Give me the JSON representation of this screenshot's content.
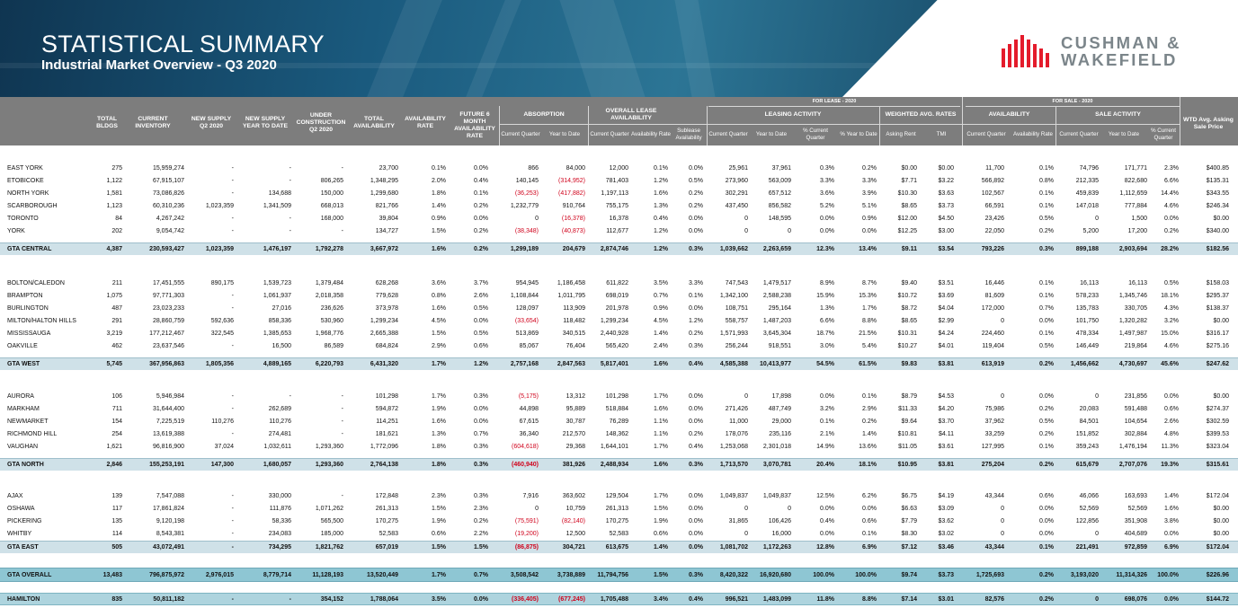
{
  "banner": {
    "title": "STATISTICAL SUMMARY",
    "subtitle": "Industrial Market Overview - Q3 2020",
    "logo_line1": "CUSHMAN &",
    "logo_line2": "WAKEFIELD"
  },
  "headers": {
    "for_lease": "FOR LEASE - 2020",
    "for_sale": "FOR SALE - 2020",
    "total_bldgs": "TOTAL BLDGS",
    "current_inventory": "CURRENT INVENTORY",
    "new_supply_q2": "NEW SUPPLY Q2 2020",
    "new_supply_ytd": "NEW SUPPLY YEAR TO DATE",
    "under_construction": "UNDER CONSTRUCTION Q2 2020",
    "total_availability": "TOTAL AVAILABILITY",
    "availability_rate": "AVAILABILITY RATE",
    "future_6_month": "FUTURE 6 MONTH AVAILABILITY RATE",
    "absorption": "ABSORPTION",
    "overall_lease_availability": "OVERALL LEASE AVAILABILITY",
    "leasing_activity": "LEASING ACTIVITY",
    "weighted_avg_rates": "WEIGHTED AVG. RATES",
    "availability": "AVAILABILITY",
    "sale_activity": "SALE ACTIVITY",
    "wtd_avg_asking_sale_price": "WTD Avg. Asking Sale Price",
    "current_quarter": "Current Quarter",
    "year_to_date": "Year to Date",
    "availability_rate_sub": "Availability Rate",
    "sublease_availability": "Sublease Availability",
    "pct_current_quarter": "% Current Quarter",
    "pct_year_to_date": "% Year to Date",
    "asking_rent": "Asking Rent",
    "tmi": "TMI",
    "pct_current_quarter_2": "% Current Quarter"
  },
  "rows": [
    {
      "type": "data",
      "cells": [
        "EAST YORK",
        "275",
        "15,959,274",
        "-",
        "-",
        "-",
        "23,700",
        "0.1%",
        "0.0%",
        "866",
        "84,000",
        "12,000",
        "0.1%",
        "0.0%",
        "25,961",
        "37,961",
        "0.3%",
        "0.2%",
        "$0.00",
        "$0.00",
        "11,700",
        "0.1%",
        "74,796",
        "171,771",
        "2.3%",
        "$400.85"
      ]
    },
    {
      "type": "data",
      "cells": [
        "ETOBICOKE",
        "1,122",
        "67,915,107",
        "-",
        "-",
        "806,265",
        "1,348,295",
        "2.0%",
        "0.4%",
        "140,145",
        "(314,952)",
        "781,403",
        "1.2%",
        "0.5%",
        "273,960",
        "563,009",
        "3.3%",
        "3.3%",
        "$7.71",
        "$3.22",
        "566,892",
        "0.8%",
        "212,335",
        "822,680",
        "6.6%",
        "$135.31"
      ]
    },
    {
      "type": "data",
      "cells": [
        "NORTH YORK",
        "1,581",
        "73,086,826",
        "-",
        "134,688",
        "150,000",
        "1,299,680",
        "1.8%",
        "0.1%",
        "(36,253)",
        "(417,882)",
        "1,197,113",
        "1.6%",
        "0.2%",
        "302,291",
        "657,512",
        "3.6%",
        "3.9%",
        "$10.30",
        "$3.63",
        "102,567",
        "0.1%",
        "459,839",
        "1,112,659",
        "14.4%",
        "$343.55"
      ]
    },
    {
      "type": "data",
      "cells": [
        "SCARBOROUGH",
        "1,123",
        "60,310,236",
        "1,023,359",
        "1,341,509",
        "668,013",
        "821,766",
        "1.4%",
        "0.2%",
        "1,232,779",
        "910,764",
        "755,175",
        "1.3%",
        "0.2%",
        "437,450",
        "856,582",
        "5.2%",
        "5.1%",
        "$8.65",
        "$3.73",
        "66,591",
        "0.1%",
        "147,018",
        "777,884",
        "4.6%",
        "$246.34"
      ]
    },
    {
      "type": "data",
      "cells": [
        "TORONTO",
        "84",
        "4,267,242",
        "-",
        "-",
        "168,000",
        "39,804",
        "0.9%",
        "0.0%",
        "0",
        "(16,378)",
        "16,378",
        "0.4%",
        "0.0%",
        "0",
        "148,595",
        "0.0%",
        "0.9%",
        "$12.00",
        "$4.50",
        "23,426",
        "0.5%",
        "0",
        "1,500",
        "0.0%",
        "$0.00"
      ]
    },
    {
      "type": "data",
      "cells": [
        "YORK",
        "202",
        "9,054,742",
        "-",
        "-",
        "-",
        "134,727",
        "1.5%",
        "0.2%",
        "(38,348)",
        "(40,873)",
        "112,677",
        "1.2%",
        "0.0%",
        "0",
        "0",
        "0.0%",
        "0.0%",
        "$12.25",
        "$3.00",
        "22,050",
        "0.2%",
        "5,200",
        "17,200",
        "0.2%",
        "$340.00"
      ]
    },
    {
      "type": "total",
      "cells": [
        "GTA CENTRAL",
        "4,387",
        "230,593,427",
        "1,023,359",
        "1,476,197",
        "1,792,278",
        "3,667,972",
        "1.6%",
        "0.2%",
        "1,299,189",
        "204,679",
        "2,874,746",
        "1.2%",
        "0.3%",
        "1,039,662",
        "2,263,659",
        "12.3%",
        "13.4%",
        "$9.11",
        "$3.54",
        "793,226",
        "0.3%",
        "899,188",
        "2,903,694",
        "28.2%",
        "$182.56"
      ]
    },
    {
      "type": "data",
      "cells": [
        "BOLTON/CALEDON",
        "211",
        "17,451,555",
        "890,175",
        "1,539,723",
        "1,379,484",
        "628,268",
        "3.6%",
        "3.7%",
        "954,945",
        "1,186,458",
        "611,822",
        "3.5%",
        "3.3%",
        "747,543",
        "1,479,517",
        "8.9%",
        "8.7%",
        "$9.40",
        "$3.51",
        "16,446",
        "0.1%",
        "16,113",
        "16,113",
        "0.5%",
        "$158.03"
      ]
    },
    {
      "type": "data",
      "cells": [
        "BRAMPTON",
        "1,075",
        "97,771,303",
        "-",
        "1,061,937",
        "2,018,358",
        "779,628",
        "0.8%",
        "2.6%",
        "1,108,844",
        "1,011,795",
        "698,019",
        "0.7%",
        "0.1%",
        "1,342,100",
        "2,588,238",
        "15.9%",
        "15.3%",
        "$10.72",
        "$3.69",
        "81,609",
        "0.1%",
        "578,233",
        "1,345,746",
        "18.1%",
        "$295.37"
      ]
    },
    {
      "type": "data",
      "cells": [
        "BURLINGTON",
        "487",
        "23,023,233",
        "-",
        "27,016",
        "236,626",
        "373,978",
        "1.6%",
        "0.5%",
        "128,097",
        "113,909",
        "201,978",
        "0.9%",
        "0.0%",
        "108,751",
        "295,164",
        "1.3%",
        "1.7%",
        "$8.72",
        "$4.04",
        "172,000",
        "0.7%",
        "135,783",
        "330,705",
        "4.3%",
        "$138.37"
      ]
    },
    {
      "type": "data",
      "cells": [
        "MILTON/HALTON HILLS",
        "291",
        "28,860,759",
        "592,636",
        "858,336",
        "530,960",
        "1,299,234",
        "4.5%",
        "0.0%",
        "(33,654)",
        "118,482",
        "1,299,234",
        "4.5%",
        "1.2%",
        "558,757",
        "1,487,203",
        "6.6%",
        "8.8%",
        "$8.65",
        "$2.99",
        "0",
        "0.0%",
        "101,750",
        "1,320,282",
        "3.2%",
        "$0.00"
      ]
    },
    {
      "type": "data",
      "cells": [
        "MISSISSAUGA",
        "3,219",
        "177,212,467",
        "322,545",
        "1,385,653",
        "1,968,776",
        "2,665,388",
        "1.5%",
        "0.5%",
        "513,869",
        "340,515",
        "2,440,928",
        "1.4%",
        "0.2%",
        "1,571,993",
        "3,645,304",
        "18.7%",
        "21.5%",
        "$10.31",
        "$4.24",
        "224,460",
        "0.1%",
        "478,334",
        "1,497,987",
        "15.0%",
        "$316.17"
      ]
    },
    {
      "type": "data",
      "cells": [
        "OAKVILLE",
        "462",
        "23,637,546",
        "-",
        "16,500",
        "86,589",
        "684,824",
        "2.9%",
        "0.6%",
        "85,067",
        "76,404",
        "565,420",
        "2.4%",
        "0.3%",
        "256,244",
        "918,551",
        "3.0%",
        "5.4%",
        "$10.27",
        "$4.01",
        "119,404",
        "0.5%",
        "146,449",
        "219,864",
        "4.6%",
        "$275.16"
      ]
    },
    {
      "type": "total",
      "cells": [
        "GTA WEST",
        "5,745",
        "367,956,863",
        "1,805,356",
        "4,889,165",
        "6,220,793",
        "6,431,320",
        "1.7%",
        "1.2%",
        "2,757,168",
        "2,847,563",
        "5,817,401",
        "1.6%",
        "0.4%",
        "4,585,388",
        "10,413,977",
        "54.5%",
        "61.5%",
        "$9.83",
        "$3.81",
        "613,919",
        "0.2%",
        "1,456,662",
        "4,730,697",
        "45.6%",
        "$247.62"
      ]
    },
    {
      "type": "data",
      "cells": [
        "AURORA",
        "106",
        "5,946,984",
        "-",
        "-",
        "-",
        "101,298",
        "1.7%",
        "0.3%",
        "(5,175)",
        "13,312",
        "101,298",
        "1.7%",
        "0.0%",
        "0",
        "17,898",
        "0.0%",
        "0.1%",
        "$8.79",
        "$4.53",
        "0",
        "0.0%",
        "0",
        "231,856",
        "0.0%",
        "$0.00"
      ]
    },
    {
      "type": "data",
      "cells": [
        "MARKHAM",
        "711",
        "31,644,400",
        "-",
        "262,689",
        "-",
        "594,872",
        "1.9%",
        "0.0%",
        "44,898",
        "95,889",
        "518,884",
        "1.6%",
        "0.0%",
        "271,426",
        "487,749",
        "3.2%",
        "2.9%",
        "$11.33",
        "$4.20",
        "75,986",
        "0.2%",
        "20,083",
        "591,488",
        "0.6%",
        "$274.37"
      ]
    },
    {
      "type": "data",
      "cells": [
        "NEWMARKET",
        "154",
        "7,225,519",
        "110,276",
        "110,276",
        "-",
        "114,251",
        "1.6%",
        "0.0%",
        "67,615",
        "30,787",
        "76,289",
        "1.1%",
        "0.0%",
        "11,000",
        "29,000",
        "0.1%",
        "0.2%",
        "$9.64",
        "$3.70",
        "37,962",
        "0.5%",
        "84,501",
        "104,654",
        "2.6%",
        "$302.59"
      ]
    },
    {
      "type": "data",
      "cells": [
        "RICHMOND HILL",
        "254",
        "13,619,388",
        "-",
        "274,481",
        "-",
        "181,621",
        "1.3%",
        "0.7%",
        "36,340",
        "212,570",
        "148,362",
        "1.1%",
        "0.2%",
        "178,076",
        "235,116",
        "2.1%",
        "1.4%",
        "$10.81",
        "$4.11",
        "33,259",
        "0.2%",
        "151,852",
        "302,884",
        "4.8%",
        "$399.53"
      ]
    },
    {
      "type": "data",
      "cells": [
        "VAUGHAN",
        "1,621",
        "96,816,900",
        "37,024",
        "1,032,611",
        "1,293,360",
        "1,772,096",
        "1.8%",
        "0.3%",
        "(604,618)",
        "29,368",
        "1,644,101",
        "1.7%",
        "0.4%",
        "1,253,068",
        "2,301,018",
        "14.9%",
        "13.6%",
        "$11.05",
        "$3.61",
        "127,995",
        "0.1%",
        "359,243",
        "1,476,194",
        "11.3%",
        "$323.04"
      ]
    },
    {
      "type": "total",
      "cells": [
        "GTA NORTH",
        "2,846",
        "155,253,191",
        "147,300",
        "1,680,057",
        "1,293,360",
        "2,764,138",
        "1.8%",
        "0.3%",
        "(460,940)",
        "381,926",
        "2,488,934",
        "1.6%",
        "0.3%",
        "1,713,570",
        "3,070,781",
        "20.4%",
        "18.1%",
        "$10.95",
        "$3.81",
        "275,204",
        "0.2%",
        "615,679",
        "2,707,076",
        "19.3%",
        "$315.61"
      ]
    },
    {
      "type": "data",
      "cells": [
        "AJAX",
        "139",
        "7,547,088",
        "-",
        "330,000",
        "-",
        "172,848",
        "2.3%",
        "0.3%",
        "7,916",
        "363,602",
        "129,504",
        "1.7%",
        "0.0%",
        "1,049,837",
        "1,049,837",
        "12.5%",
        "6.2%",
        "$6.75",
        "$4.19",
        "43,344",
        "0.6%",
        "46,066",
        "163,693",
        "1.4%",
        "$172.04"
      ]
    },
    {
      "type": "data",
      "cells": [
        "OSHAWA",
        "117",
        "17,861,824",
        "-",
        "111,876",
        "1,071,262",
        "261,313",
        "1.5%",
        "2.3%",
        "0",
        "10,759",
        "261,313",
        "1.5%",
        "0.0%",
        "0",
        "0",
        "0.0%",
        "0.0%",
        "$6.63",
        "$3.09",
        "0",
        "0.0%",
        "52,569",
        "52,569",
        "1.6%",
        "$0.00"
      ]
    },
    {
      "type": "data",
      "cells": [
        "PICKERING",
        "135",
        "9,120,198",
        "-",
        "58,336",
        "565,500",
        "170,275",
        "1.9%",
        "0.2%",
        "(75,591)",
        "(82,140)",
        "170,275",
        "1.9%",
        "0.0%",
        "31,865",
        "106,426",
        "0.4%",
        "0.6%",
        "$7.79",
        "$3.62",
        "0",
        "0.0%",
        "122,856",
        "351,908",
        "3.8%",
        "$0.00"
      ]
    },
    {
      "type": "data",
      "cells": [
        "WHITBY",
        "114",
        "8,543,381",
        "-",
        "234,083",
        "185,000",
        "52,583",
        "0.6%",
        "2.2%",
        "(19,200)",
        "12,500",
        "52,583",
        "0.6%",
        "0.0%",
        "0",
        "16,000",
        "0.0%",
        "0.1%",
        "$8.30",
        "$3.02",
        "0",
        "0.0%",
        "0",
        "404,689",
        "0.0%",
        "$0.00"
      ]
    },
    {
      "type": "total",
      "cells": [
        "GTA EAST",
        "505",
        "43,072,491",
        "-",
        "734,295",
        "1,821,762",
        "657,019",
        "1.5%",
        "1.5%",
        "(86,875)",
        "304,721",
        "613,675",
        "1.4%",
        "0.0%",
        "1,081,702",
        "1,172,263",
        "12.8%",
        "6.9%",
        "$7.12",
        "$3.46",
        "43,344",
        "0.1%",
        "221,491",
        "972,859",
        "6.9%",
        "$172.04"
      ]
    },
    {
      "type": "gta",
      "cells": [
        "GTA OVERALL",
        "13,483",
        "796,875,972",
        "2,976,015",
        "8,779,714",
        "11,128,193",
        "13,520,449",
        "1.7%",
        "0.7%",
        "3,508,542",
        "3,738,889",
        "11,794,756",
        "1.5%",
        "0.3%",
        "8,420,322",
        "16,920,680",
        "100.0%",
        "100.0%",
        "$9.74",
        "$3.73",
        "1,725,693",
        "0.2%",
        "3,193,020",
        "11,314,326",
        "100.0%",
        "$226.96"
      ]
    },
    {
      "type": "ham",
      "cells": [
        "HAMILTON",
        "835",
        "50,811,182",
        "-",
        "-",
        "354,152",
        "1,788,064",
        "3.5%",
        "0.0%",
        "(336,405)",
        "(677,245)",
        "1,705,488",
        "3.4%",
        "0.4%",
        "996,521",
        "1,483,099",
        "11.8%",
        "8.8%",
        "$7.14",
        "$3.01",
        "82,576",
        "0.2%",
        "0",
        "698,076",
        "0.0%",
        "$144.72"
      ]
    }
  ]
}
